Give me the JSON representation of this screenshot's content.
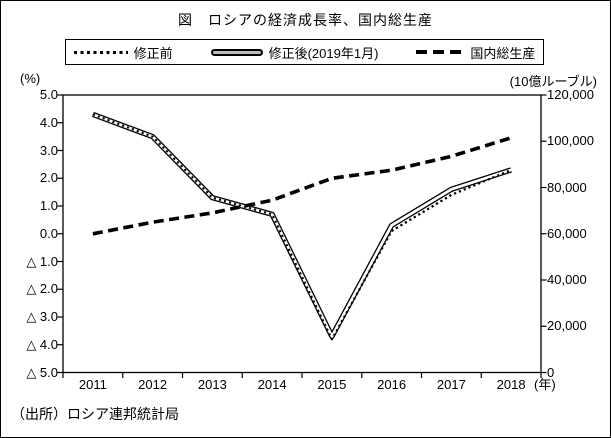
{
  "figure": {
    "title": "図　ロシアの経済成長率、国内総生産",
    "left_axis_unit": "(%)",
    "right_axis_unit": "(10億ルーブル)",
    "x_axis_suffix": "(年)",
    "source": "（出所）ロシア連邦統計局"
  },
  "legend": {
    "items": [
      {
        "label": "修正前",
        "style": "dotted"
      },
      {
        "label": "修正後(2019年1月)",
        "style": "double"
      },
      {
        "label": "国内総生産",
        "style": "dashed"
      }
    ]
  },
  "chart_data": {
    "type": "line",
    "categories": [
      "2011",
      "2012",
      "2013",
      "2014",
      "2015",
      "2016",
      "2017",
      "2018"
    ],
    "series": [
      {
        "name": "修正前",
        "axis": "left",
        "style": "dotted",
        "values": [
          4.3,
          3.5,
          1.3,
          0.7,
          -3.8,
          0.1,
          1.4,
          2.3
        ]
      },
      {
        "name": "修正後(2019年1月)",
        "axis": "left",
        "style": "double",
        "values": [
          4.3,
          3.5,
          1.3,
          0.7,
          -3.7,
          0.3,
          1.6,
          2.3
        ]
      },
      {
        "name": "国内総生産",
        "axis": "right",
        "style": "dashed",
        "values": [
          60000,
          65000,
          69000,
          74500,
          84000,
          87500,
          93500,
          101500
        ]
      }
    ],
    "left_axis": {
      "min": -5,
      "max": 5,
      "tick_values": [
        5,
        4,
        3,
        2,
        1,
        0,
        -1,
        -2,
        -3,
        -4,
        -5
      ],
      "tick_labels": [
        "5.0",
        "4.0",
        "3.0",
        "2.0",
        "1.0",
        "0.0",
        "△ 1.0",
        "△ 2.0",
        "△ 3.0",
        "△ 4.0",
        "△ 5.0"
      ]
    },
    "right_axis": {
      "min": 0,
      "max": 120000,
      "tick_values": [
        120000,
        100000,
        80000,
        60000,
        40000,
        20000,
        0
      ],
      "tick_labels": [
        "120,000",
        "100,000",
        "80,000",
        "60,000",
        "40,000",
        "20,000",
        "0"
      ]
    },
    "grid": false,
    "legend_position": "top",
    "colors": {
      "line": "#000000",
      "background": "#ffffff",
      "double_core": "#ffffff"
    }
  }
}
